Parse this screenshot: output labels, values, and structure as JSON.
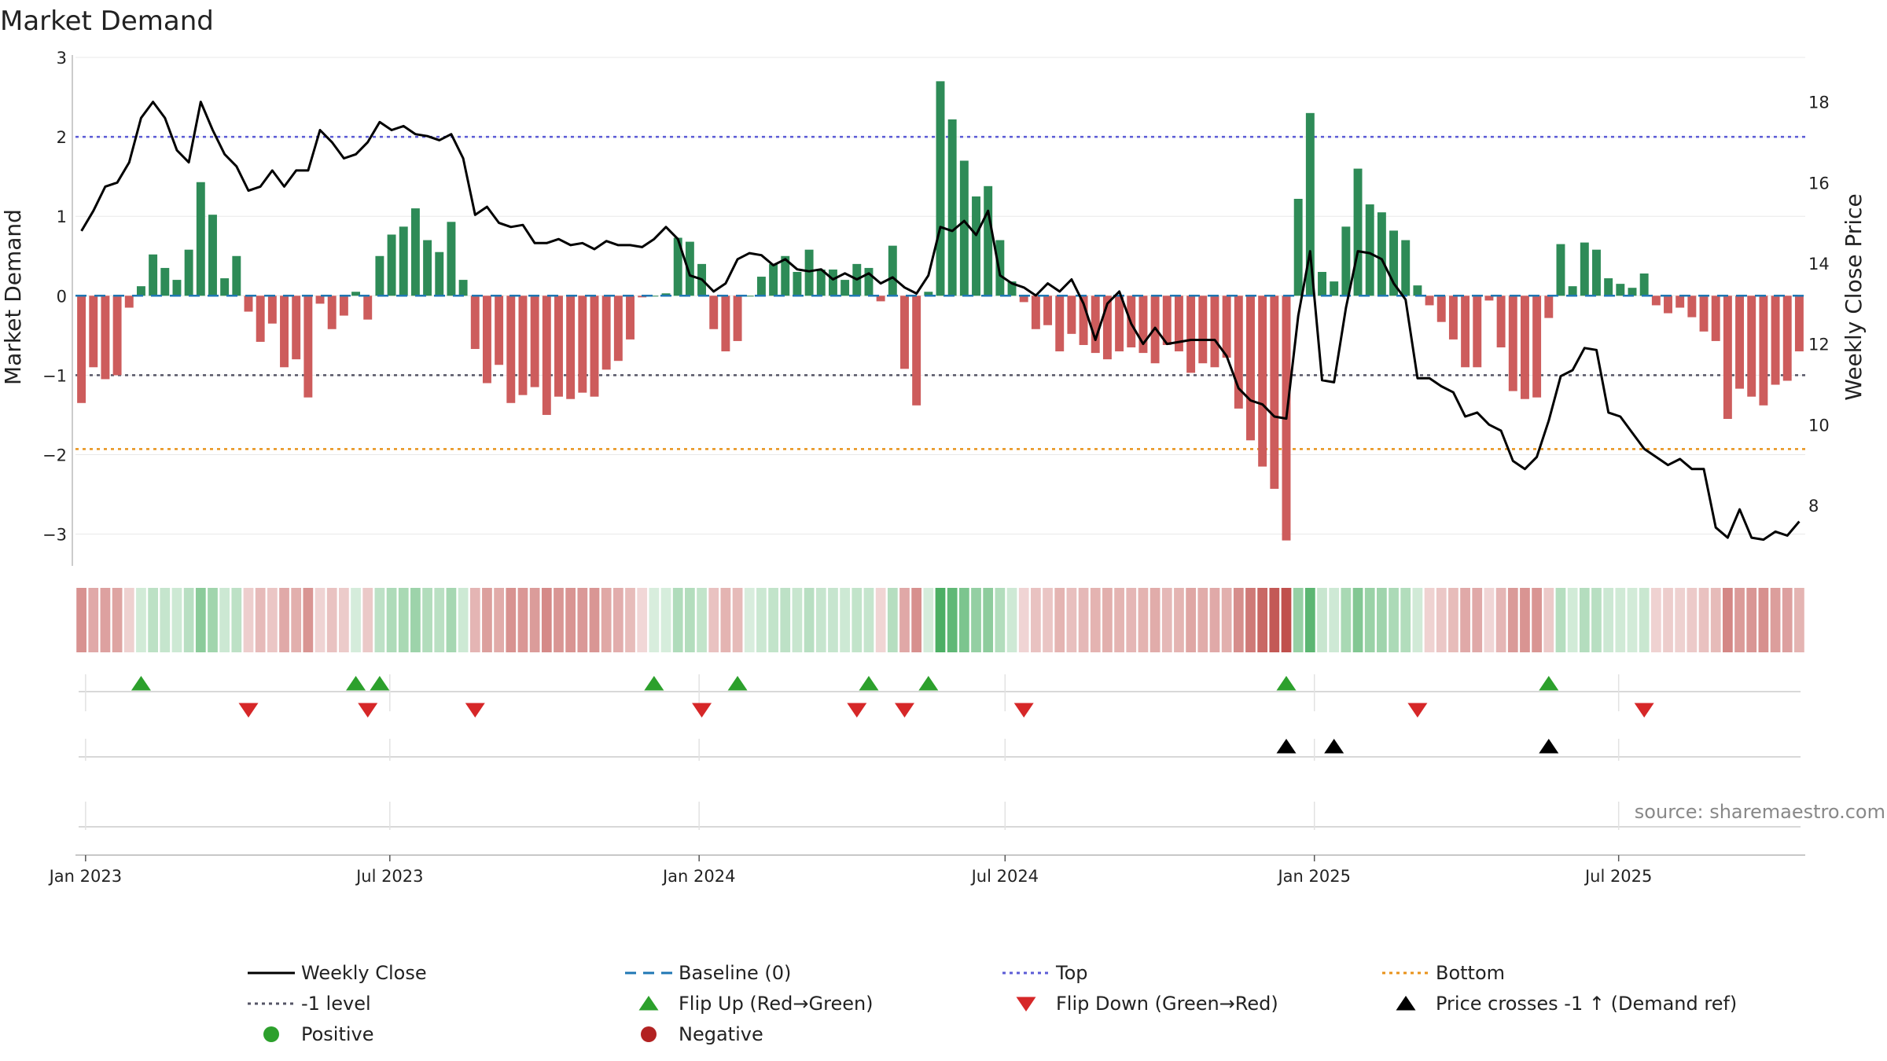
{
  "chart_data": {
    "type": "bar",
    "title": "Market Demand",
    "ylabel": "Market Demand",
    "ylabel_right": "Weekly Close Price",
    "source": "source: sharemaestro.com",
    "ylim": [
      -3.4,
      3.05
    ],
    "yticks": [
      3,
      2,
      1,
      0,
      -1,
      -2,
      -3
    ],
    "ytick_labels": [
      "3",
      "2",
      "1",
      "0",
      "−1",
      "−2",
      "−3"
    ],
    "ylim_right": [
      6.5,
      19.2
    ],
    "yticks_right": [
      8,
      10,
      12,
      14,
      16,
      18
    ],
    "x_start": "2022-12-26",
    "x_end": "2025-10-20",
    "xtick_dates": [
      "2023-01-01",
      "2023-07-01",
      "2024-01-01",
      "2024-07-01",
      "2025-01-01",
      "2025-07-01"
    ],
    "xtick_labels": [
      "Jan 2023",
      "Jul 2023",
      "Jan 2024",
      "Jul 2024",
      "Jan 2025",
      "Jul 2025"
    ],
    "reference_lines": {
      "top": 2.0,
      "bottom": -1.93,
      "minus_one": -1.0,
      "baseline": 0
    },
    "demand": [
      -1.35,
      -0.9,
      -1.05,
      -1.0,
      -0.15,
      0.12,
      0.52,
      0.35,
      0.2,
      0.58,
      1.43,
      1.02,
      0.22,
      0.5,
      -0.2,
      -0.58,
      -0.35,
      -0.9,
      -0.8,
      -1.28,
      -0.1,
      -0.42,
      -0.25,
      0.05,
      -0.3,
      0.5,
      0.77,
      0.87,
      1.1,
      0.7,
      0.55,
      0.93,
      0.2,
      -0.67,
      -1.1,
      -0.87,
      -1.35,
      -1.25,
      -1.15,
      -1.5,
      -1.27,
      -1.3,
      -1.22,
      -1.27,
      -0.93,
      -0.82,
      -0.55,
      -0.02,
      0.0,
      0.03,
      0.73,
      0.68,
      0.4,
      -0.42,
      -0.7,
      -0.57,
      0.0,
      0.24,
      0.4,
      0.5,
      0.3,
      0.58,
      0.33,
      0.33,
      0.2,
      0.4,
      0.35,
      -0.07,
      0.63,
      -0.92,
      -1.38,
      0.05,
      2.7,
      2.22,
      1.7,
      1.25,
      1.38,
      0.7,
      0.18,
      -0.08,
      -0.42,
      -0.37,
      -0.7,
      -0.48,
      -0.62,
      -0.72,
      -0.8,
      -0.7,
      -0.65,
      -0.72,
      -0.85,
      -0.62,
      -0.7,
      -0.97,
      -0.85,
      -0.9,
      -0.78,
      -1.42,
      -1.82,
      -2.15,
      -2.43,
      -3.08,
      1.22,
      2.3,
      0.3,
      0.18,
      0.87,
      1.6,
      1.15,
      1.05,
      0.82,
      0.7,
      0.13,
      -0.12,
      -0.33,
      -0.55,
      -0.9,
      -0.9,
      -0.06,
      -0.65,
      -1.2,
      -1.3,
      -1.28,
      -0.28,
      0.65,
      0.12,
      0.67,
      0.58,
      0.22,
      0.15,
      0.1,
      0.28,
      -0.12,
      -0.22,
      -0.15,
      -0.27,
      -0.45,
      -0.57,
      -1.55,
      -1.17,
      -1.27,
      -1.38,
      -1.12,
      -1.07,
      -0.7
    ],
    "weekly_close": [
      14.8,
      15.3,
      15.9,
      16.0,
      16.5,
      17.6,
      18.0,
      17.6,
      16.8,
      16.5,
      18.0,
      17.3,
      16.7,
      16.4,
      15.8,
      15.9,
      16.3,
      15.9,
      16.3,
      16.3,
      17.3,
      17.0,
      16.6,
      16.7,
      17.0,
      17.5,
      17.3,
      17.4,
      17.2,
      17.15,
      17.05,
      17.2,
      16.6,
      15.2,
      15.4,
      15.0,
      14.9,
      14.95,
      14.5,
      14.5,
      14.6,
      14.45,
      14.5,
      14.35,
      14.55,
      14.45,
      14.45,
      14.4,
      14.6,
      14.9,
      14.6,
      13.7,
      13.6,
      13.3,
      13.5,
      14.1,
      14.25,
      14.2,
      13.95,
      14.1,
      13.85,
      13.8,
      13.85,
      13.6,
      13.75,
      13.6,
      13.75,
      13.5,
      13.65,
      13.4,
      13.25,
      13.7,
      14.9,
      14.8,
      15.05,
      14.7,
      15.3,
      13.7,
      13.5,
      13.4,
      13.2,
      13.5,
      13.3,
      13.6,
      13.0,
      12.1,
      13.0,
      13.3,
      12.5,
      12.0,
      12.4,
      12.0,
      12.05,
      12.1,
      12.1,
      12.1,
      11.7,
      10.9,
      10.6,
      10.5,
      10.2,
      10.15,
      12.7,
      14.3,
      11.1,
      11.05,
      12.9,
      14.3,
      14.25,
      14.1,
      13.5,
      13.1,
      11.15,
      11.15,
      10.95,
      10.8,
      10.2,
      10.3,
      10.0,
      9.85,
      9.1,
      8.9,
      9.2,
      10.1,
      11.2,
      11.35,
      11.9,
      11.85,
      10.3,
      10.2,
      9.8,
      9.4,
      9.2,
      9.0,
      9.15,
      8.9,
      8.9,
      7.45,
      7.2,
      7.9,
      7.2,
      7.15,
      7.35,
      7.25,
      7.6
    ],
    "flip_up_idx": [
      5,
      23,
      25,
      48,
      55,
      66,
      71,
      101,
      123
    ],
    "flip_down_idx": [
      14,
      24,
      33,
      52,
      65,
      69,
      79,
      112,
      131
    ],
    "cross_idx": [
      101,
      105,
      123
    ],
    "legend": [
      {
        "label": "Weekly Close",
        "kind": "line",
        "color": "#000000"
      },
      {
        "label": "Baseline (0)",
        "kind": "dash",
        "color": "#1f77b4"
      },
      {
        "label": "Top",
        "kind": "dot",
        "color": "#5b5bd6"
      },
      {
        "label": "Bottom",
        "kind": "dot",
        "color": "#e8921a"
      },
      {
        "label": "-1 level",
        "kind": "dot",
        "color": "#555566"
      },
      {
        "label": "Flip Up (Red→Green)",
        "kind": "tri-up",
        "color": "#2ca02c"
      },
      {
        "label": "Flip Down (Green→Red)",
        "kind": "tri-down",
        "color": "#d62728"
      },
      {
        "label": "Price crosses -1 ↑ (Demand ref)",
        "kind": "tri-up",
        "color": "#000000"
      },
      {
        "label": "Positive",
        "kind": "circle",
        "color": "#2ca02c"
      },
      {
        "label": "Negative",
        "kind": "circle",
        "color": "#b22222"
      }
    ],
    "colors": {
      "positive": "#2e8b57",
      "negative": "#cd5c5c",
      "price": "#000000",
      "top": "#5b5bd6",
      "bottom": "#e8921a",
      "minus_one": "#555566",
      "baseline": "#1f77b4"
    }
  }
}
